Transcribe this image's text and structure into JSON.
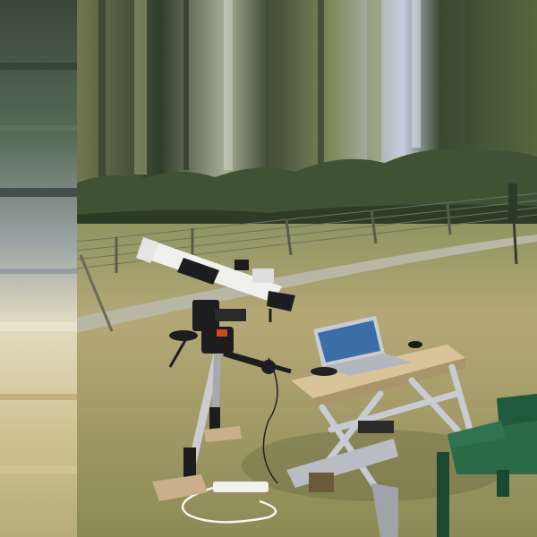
{
  "scene": {
    "subject": "telescope-setup-in-field",
    "elements": [
      "refractor-telescope",
      "equatorial-mount",
      "tripod",
      "laptop",
      "folding-workbench",
      "green-plastic-chair",
      "wire-fence",
      "tree-line",
      "power-strip",
      "cable"
    ]
  },
  "colors": {
    "grass_dry": "#b3a56e",
    "grass_green": "#8b9257",
    "trees": "#3f5233",
    "telescope_white": "#f0f0ee",
    "mount_black": "#1d1d1f",
    "chair_green": "#1f5a3c",
    "table_wood": "#d9c49a",
    "laptop_silver": "#c9ccd1",
    "laptop_screen": "#3b6da6"
  }
}
